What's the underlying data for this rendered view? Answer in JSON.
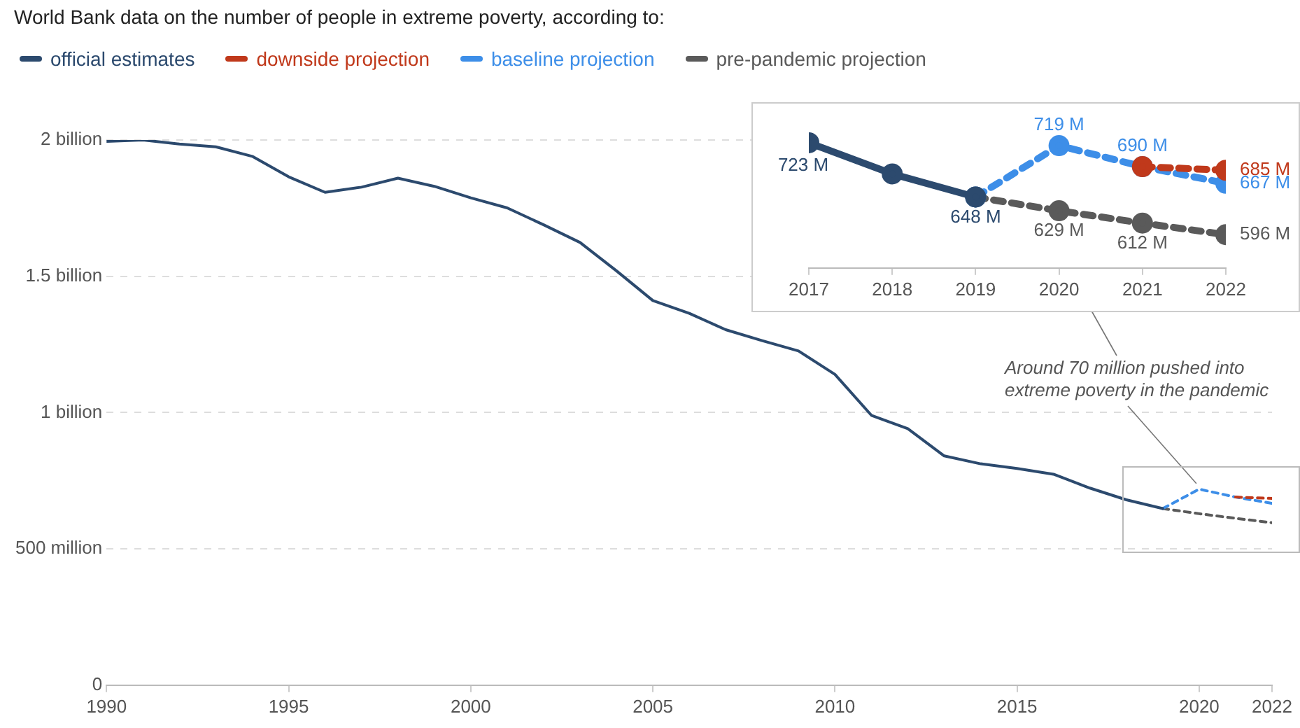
{
  "chart_data": [
    {
      "type": "line",
      "title": "World Bank data on the number of people in extreme poverty, according to:",
      "legend": "top left",
      "grid": "y",
      "xlim": [
        1990,
        2022
      ],
      "xticks": [
        1990,
        1995,
        2000,
        2005,
        2010,
        2015,
        2020,
        2022
      ],
      "ylim": [
        0,
        2000000000
      ],
      "yticks": [
        0,
        {
          "value": 500000000,
          "label": "500 million"
        },
        {
          "value": 1000000000,
          "label": "1 billion"
        },
        {
          "value": 1500000000,
          "label": "1.5 billion"
        },
        {
          "value": 2000000000,
          "label": "2 billion"
        }
      ],
      "annotations": [
        {
          "text": "Around 70 million pushed into extreme poverty in the pandemic",
          "x": 2020,
          "y": 719000000
        }
      ],
      "series": [
        {
          "name": "official estimates",
          "color": "#2c4a6e",
          "line_style": "solid",
          "x": [
            1990,
            1991,
            1992,
            1993,
            1994,
            1995,
            1996,
            1997,
            1998,
            1999,
            2000,
            2001,
            2002,
            2003,
            2004,
            2005,
            2006,
            2007,
            2008,
            2009,
            2010,
            2011,
            2012,
            2013,
            2014,
            2015,
            2016,
            2017,
            2018,
            2019
          ],
          "values": [
            1995000000,
            2000000000,
            1985000000,
            1975000000,
            1940000000,
            1865000000,
            1808000000,
            1827000000,
            1860000000,
            1830000000,
            1788000000,
            1751000000,
            1689000000,
            1624000000,
            1520000000,
            1411000000,
            1364000000,
            1304000000,
            1264000000,
            1226000000,
            1140000000,
            990000000,
            941000000,
            841000000,
            812000000,
            795000000,
            774000000,
            723000000,
            680000000,
            648000000
          ]
        },
        {
          "name": "downside projection",
          "color": "#c0391b",
          "line_style": "dashed",
          "x": [
            2021,
            2022
          ],
          "values": [
            690000000,
            685000000
          ]
        },
        {
          "name": "baseline projection",
          "color": "#3d8ee8",
          "line_style": "dashed",
          "x": [
            2019,
            2020,
            2021,
            2022
          ],
          "values": [
            648000000,
            719000000,
            690000000,
            667000000
          ]
        },
        {
          "name": "pre-pandemic projection",
          "color": "#5a5a5a",
          "line_style": "dashed",
          "x": [
            2019,
            2020,
            2021,
            2022
          ],
          "values": [
            648000000,
            629000000,
            612000000,
            596000000
          ]
        }
      ]
    },
    {
      "type": "line",
      "tick_labels": "x",
      "grid": false,
      "marker": "circle",
      "xlim": [
        2017,
        2022
      ],
      "xticks": [
        2017,
        2018,
        2019,
        2020,
        2021,
        2022
      ],
      "series": [
        {
          "color": "#2c4a6e",
          "line_style": "solid",
          "x": [
            2017,
            2018,
            2019
          ],
          "values": [
            723,
            680,
            648
          ],
          "value_labels": [
            "723 M",
            null,
            "648 M"
          ]
        },
        {
          "color": "#c0391b",
          "line_style": "dashed",
          "x": [
            2021,
            2022
          ],
          "values": [
            690,
            685
          ],
          "value_labels": [
            null,
            "685 M"
          ]
        },
        {
          "color": "#3d8ee8",
          "line_style": "dashed",
          "x": [
            2019,
            2020,
            2021,
            2022
          ],
          "values": [
            648,
            719,
            690,
            667
          ],
          "value_labels": [
            null,
            "719 M",
            "690 M",
            "667 M"
          ]
        },
        {
          "color": "#5a5a5a",
          "line_style": "dashed",
          "x": [
            2019,
            2020,
            2021,
            2022
          ],
          "values": [
            648,
            629,
            612,
            596
          ],
          "value_labels": [
            null,
            "629 M",
            "612 M",
            "596 M"
          ]
        }
      ]
    }
  ]
}
